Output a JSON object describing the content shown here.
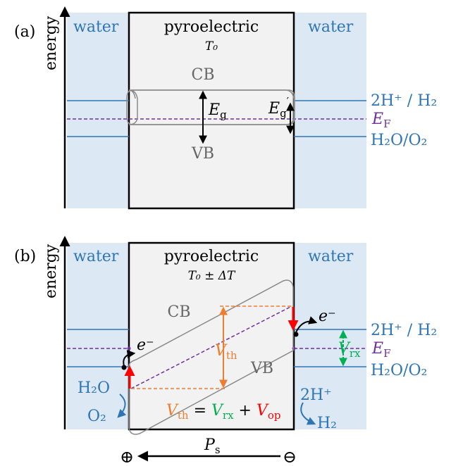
{
  "colors": {
    "water_bg": "#dce9f4",
    "material_bg": "#f2f2f2",
    "band_outline": "#8a8a8a",
    "level_blue": "#2e75b6",
    "fermi": "#7030a0",
    "vth": "#ed7d31",
    "vrx": "#00b050",
    "vop": "#ff0000"
  },
  "panel_a": {
    "label": "(a)",
    "axis_label": "energy",
    "water_left": "water",
    "water_right": "water",
    "material": "pyroelectric",
    "temperature": "T₀",
    "cb": "CB",
    "vb": "VB",
    "gap": "E",
    "gap_sub": "g",
    "gap_prime": "E",
    "gap_prime_sub": "g",
    "gap_prime_mark": "′",
    "level_h2": "2H⁺ / H₂",
    "level_fermi": "E",
    "level_fermi_sub": "F",
    "level_o2": "H₂O/O₂"
  },
  "panel_b": {
    "label": "(b)",
    "axis_label": "energy",
    "water_left": "water",
    "water_right": "water",
    "material": "pyroelectric",
    "temperature": "T₀ ± ΔT",
    "cb": "CB",
    "vb": "VB",
    "vth": "V",
    "vth_sub": "th",
    "vrx": "V",
    "vrx_sub": "rx",
    "electron_right": "e⁻",
    "electron_left": "e⁻",
    "level_h2": "2H⁺ / H₂",
    "level_fermi": "E",
    "level_fermi_sub": "F",
    "level_o2": "H₂O/O₂",
    "reactant_left": "H₂O",
    "product_left": "O₂",
    "reactant_right": "2H⁺",
    "product_right": "H₂",
    "equation": {
      "vth": "V",
      "vth_sub": "th",
      "eq": " = ",
      "vrx": "V",
      "vrx_sub": "rx",
      "plus": " + ",
      "vop": "V",
      "vop_sub": "op"
    }
  },
  "polarization": {
    "label": "P",
    "label_sub": "s",
    "plus_symbol": "⊕",
    "minus_symbol": "⊖"
  }
}
